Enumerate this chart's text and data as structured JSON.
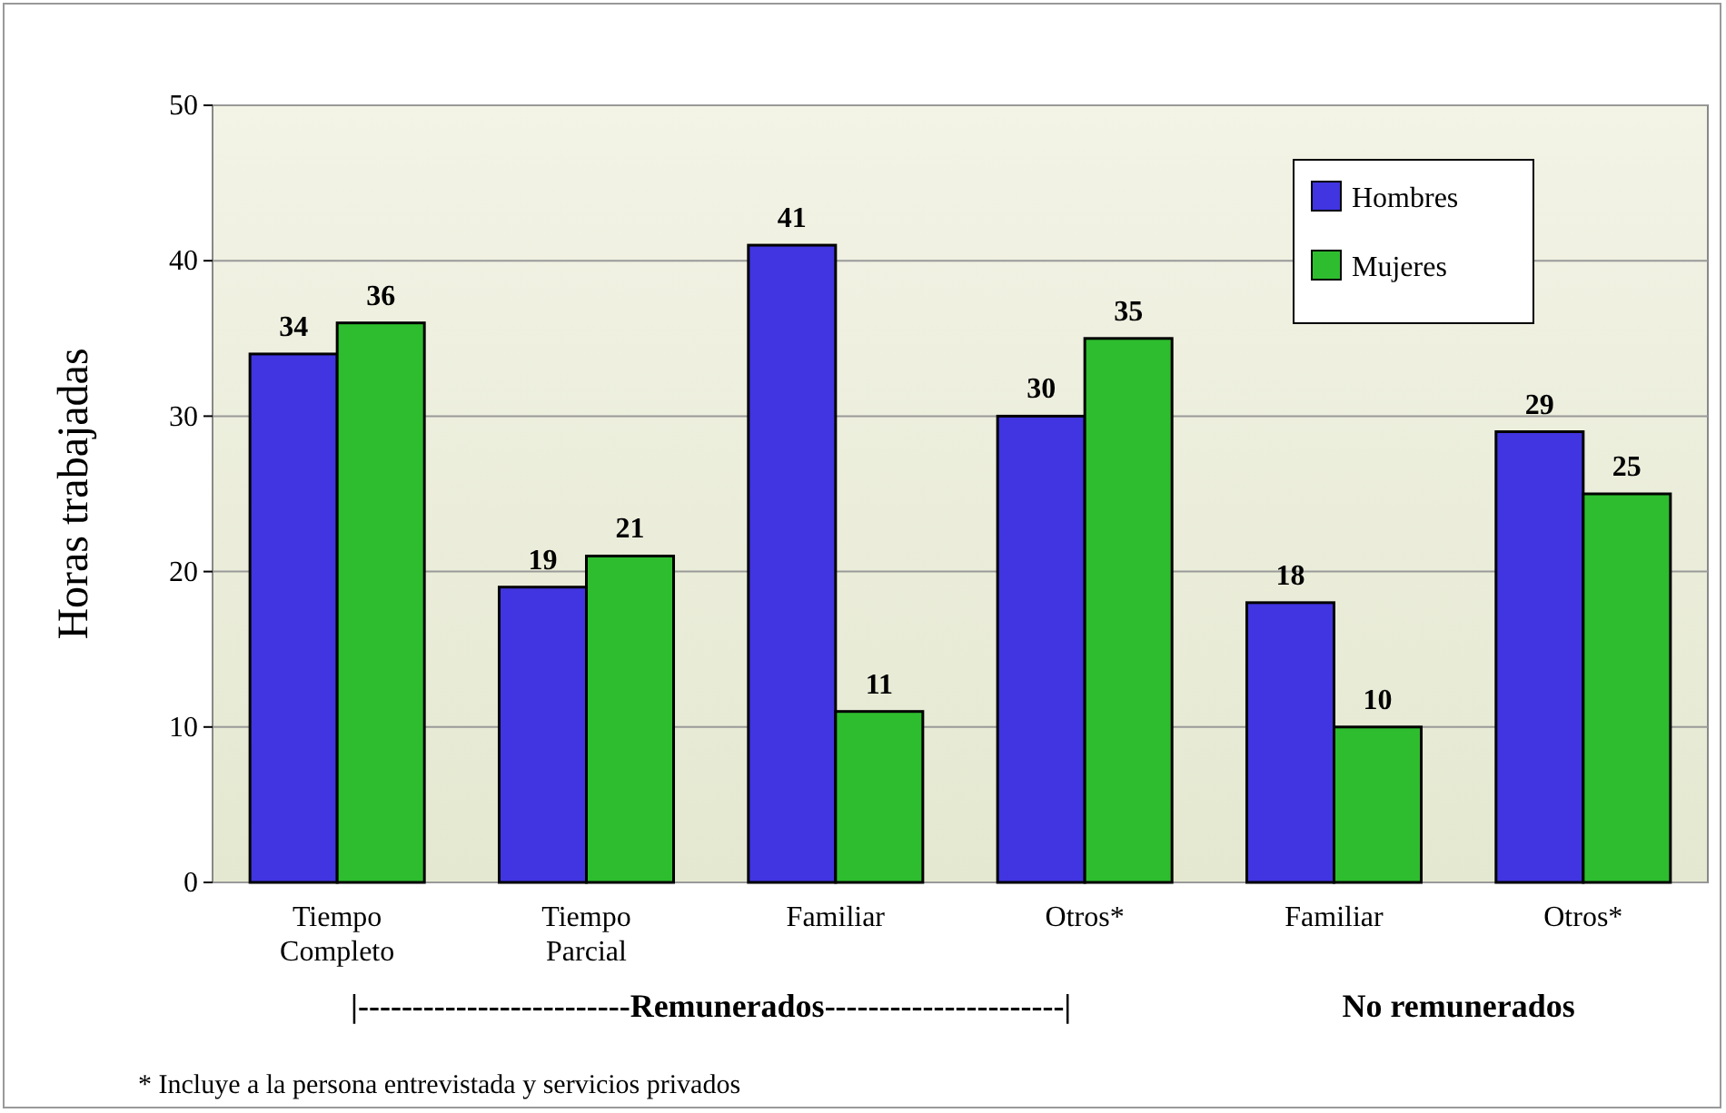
{
  "chart_data": {
    "type": "bar",
    "ylabel": "Horas trabajadas",
    "categories": [
      "Tiempo Completo",
      "Tiempo Parcial",
      "Familiar",
      "Otros*",
      "Familiar",
      "Otros*"
    ],
    "series": [
      {
        "name": "Hombres",
        "color": "#4035e0",
        "values": [
          34,
          19,
          41,
          30,
          18,
          29
        ]
      },
      {
        "name": "Mujeres",
        "color": "#2ebd2e",
        "values": [
          36,
          21,
          11,
          35,
          10,
          25
        ]
      }
    ],
    "ylim": [
      0,
      50
    ],
    "yticks": [
      0,
      10,
      20,
      30,
      40,
      50
    ],
    "grid": "y",
    "legend": "top right",
    "data_labels": true,
    "annotations": [
      "|-------------------------Remunerados----------------------|",
      "No remunerados",
      "* Incluye a la persona entrevistada y servicios privados"
    ]
  }
}
